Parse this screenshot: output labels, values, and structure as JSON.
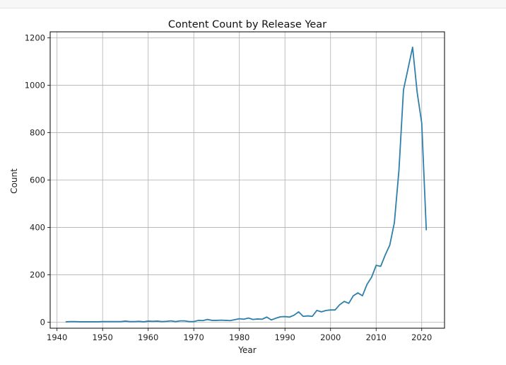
{
  "chart_data": {
    "type": "line",
    "title": "Content Count by Release Year",
    "xlabel": "Year",
    "ylabel": "Count",
    "xlim": [
      1938.5,
      2025
    ],
    "ylim": [
      -25,
      1225
    ],
    "xticks": [
      1940,
      1950,
      1960,
      1970,
      1980,
      1990,
      2000,
      2010,
      2020
    ],
    "yticks": [
      0,
      200,
      400,
      600,
      800,
      1000,
      1200
    ],
    "grid": true,
    "line_color": "#2e7fab",
    "series": [
      {
        "x": [
          1942,
          1943,
          1944,
          1945,
          1946,
          1947,
          1948,
          1949,
          1950,
          1951,
          1952,
          1953,
          1954,
          1955,
          1956,
          1957,
          1958,
          1959,
          1960,
          1961,
          1962,
          1963,
          1964,
          1965,
          1966,
          1967,
          1968,
          1969,
          1970,
          1971,
          1972,
          1973,
          1974,
          1975,
          1976,
          1977,
          1978,
          1979,
          1980,
          1981,
          1982,
          1983,
          1984,
          1985,
          1986,
          1987,
          1988,
          1989,
          1990,
          1991,
          1992,
          1993,
          1994,
          1995,
          1996,
          1997,
          1998,
          1999,
          2000,
          2001,
          2002,
          2003,
          2004,
          2005,
          2006,
          2007,
          2008,
          2009,
          2010,
          2011,
          2012,
          2013,
          2014,
          2015,
          2016,
          2017,
          2018,
          2019,
          2020,
          2021
        ],
        "values": [
          2,
          3,
          3,
          2,
          2,
          2,
          2,
          2,
          3,
          3,
          3,
          3,
          3,
          5,
          3,
          3,
          4,
          2,
          5,
          4,
          5,
          3,
          4,
          6,
          3,
          6,
          6,
          3,
          3,
          8,
          7,
          12,
          8,
          8,
          9,
          8,
          7,
          11,
          15,
          13,
          18,
          12,
          14,
          13,
          22,
          10,
          17,
          23,
          24,
          22,
          30,
          44,
          25,
          27,
          25,
          50,
          44,
          50,
          52,
          52,
          74,
          88,
          80,
          112,
          124,
          112,
          160,
          190,
          240,
          236,
          284,
          326,
          420,
          640,
          980,
          1070,
          1160,
          970,
          840,
          390
        ]
      }
    ]
  }
}
